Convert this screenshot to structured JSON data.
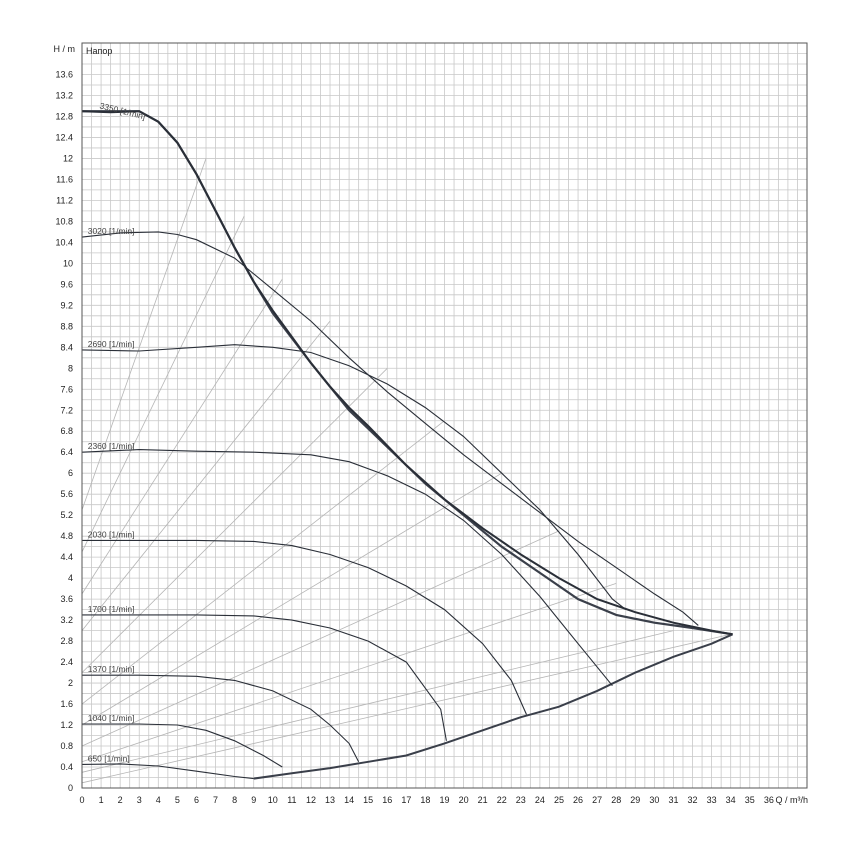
{
  "chart_data": {
    "type": "line",
    "title": "Напор",
    "ylabel": "H / m",
    "xlabel": "Q / m³/h",
    "xlim": [
      0,
      38
    ],
    "ylim": [
      0,
      14.2
    ],
    "x_ticks": [
      0,
      1,
      2,
      3,
      4,
      5,
      6,
      7,
      8,
      9,
      10,
      11,
      12,
      13,
      14,
      15,
      16,
      17,
      18,
      19,
      20,
      21,
      22,
      23,
      24,
      25,
      26,
      27,
      28,
      29,
      30,
      31,
      32,
      33,
      34,
      35,
      36
    ],
    "y_ticks": [
      0,
      0.4,
      0.8,
      1.2,
      1.6,
      2,
      2.4,
      2.8,
      3.2,
      3.6,
      4,
      4.4,
      4.8,
      5.2,
      5.6,
      6,
      6.4,
      6.8,
      7.2,
      7.6,
      8,
      8.4,
      8.8,
      9.2,
      9.6,
      10,
      10.4,
      10.8,
      11.2,
      11.6,
      12,
      12.4,
      12.8,
      13.2,
      13.6
    ],
    "grid": true,
    "speed_series": [
      {
        "name": "3350 [1/min]",
        "points": [
          [
            0,
            12.9
          ],
          [
            1.5,
            12.88
          ],
          [
            3,
            12.9
          ],
          [
            4,
            12.7
          ],
          [
            5,
            12.3
          ],
          [
            6,
            11.7
          ],
          [
            7,
            11.0
          ],
          [
            8,
            10.3
          ],
          [
            9,
            9.65
          ],
          [
            10,
            9.1
          ],
          [
            11,
            8.6
          ],
          [
            12,
            8.1
          ],
          [
            13,
            7.65
          ],
          [
            14,
            7.25
          ],
          [
            15,
            6.9
          ],
          [
            17,
            6.15
          ],
          [
            19,
            5.5
          ],
          [
            21,
            4.95
          ],
          [
            23,
            4.45
          ],
          [
            25,
            4.0
          ],
          [
            27,
            3.6
          ],
          [
            29,
            3.35
          ],
          [
            31,
            3.15
          ],
          [
            33,
            3.0
          ],
          [
            34.1,
            2.93
          ]
        ]
      },
      {
        "name": "3020 [1/min]",
        "points": [
          [
            0,
            10.5
          ],
          [
            2,
            10.58
          ],
          [
            4,
            10.6
          ],
          [
            5,
            10.55
          ],
          [
            6,
            10.45
          ],
          [
            8,
            10.1
          ],
          [
            10,
            9.5
          ],
          [
            12,
            8.9
          ],
          [
            14,
            8.2
          ],
          [
            16,
            7.55
          ],
          [
            18,
            6.95
          ],
          [
            20,
            6.35
          ],
          [
            22,
            5.8
          ],
          [
            24,
            5.25
          ],
          [
            26,
            4.7
          ],
          [
            28,
            4.2
          ],
          [
            30,
            3.7
          ],
          [
            31.5,
            3.35
          ],
          [
            32.3,
            3.1
          ]
        ]
      },
      {
        "name": "2690 [1/min]",
        "points": [
          [
            0,
            8.35
          ],
          [
            3,
            8.33
          ],
          [
            6,
            8.4
          ],
          [
            8,
            8.45
          ],
          [
            10,
            8.4
          ],
          [
            12,
            8.3
          ],
          [
            14,
            8.05
          ],
          [
            16,
            7.7
          ],
          [
            18,
            7.25
          ],
          [
            20,
            6.7
          ],
          [
            22,
            6.0
          ],
          [
            24,
            5.3
          ],
          [
            26,
            4.45
          ],
          [
            27.8,
            3.6
          ],
          [
            28.5,
            3.4
          ]
        ]
      },
      {
        "name": "2360 [1/min]",
        "points": [
          [
            0,
            6.4
          ],
          [
            3,
            6.45
          ],
          [
            6,
            6.42
          ],
          [
            9,
            6.4
          ],
          [
            12,
            6.35
          ],
          [
            14,
            6.22
          ],
          [
            16,
            5.95
          ],
          [
            18,
            5.6
          ],
          [
            20,
            5.1
          ],
          [
            22,
            4.45
          ],
          [
            24,
            3.65
          ],
          [
            26,
            2.75
          ],
          [
            27.8,
            1.95
          ]
        ]
      },
      {
        "name": "2030 [1/min]",
        "points": [
          [
            0,
            4.72
          ],
          [
            3,
            4.72
          ],
          [
            6,
            4.72
          ],
          [
            9,
            4.7
          ],
          [
            11,
            4.62
          ],
          [
            13,
            4.45
          ],
          [
            15,
            4.2
          ],
          [
            17,
            3.85
          ],
          [
            19,
            3.4
          ],
          [
            21,
            2.75
          ],
          [
            22.5,
            2.05
          ],
          [
            23.3,
            1.4
          ]
        ]
      },
      {
        "name": "1700 [1/min]",
        "points": [
          [
            0,
            3.3
          ],
          [
            3,
            3.3
          ],
          [
            6,
            3.3
          ],
          [
            9,
            3.28
          ],
          [
            11,
            3.2
          ],
          [
            13,
            3.05
          ],
          [
            15,
            2.8
          ],
          [
            17,
            2.4
          ],
          [
            18.8,
            1.5
          ],
          [
            19.1,
            0.9
          ]
        ]
      },
      {
        "name": "1370 [1/min]",
        "points": [
          [
            0,
            2.15
          ],
          [
            3,
            2.15
          ],
          [
            6,
            2.13
          ],
          [
            8,
            2.05
          ],
          [
            10,
            1.85
          ],
          [
            12,
            1.5
          ],
          [
            13,
            1.2
          ],
          [
            14,
            0.85
          ],
          [
            14.5,
            0.5
          ]
        ]
      },
      {
        "name": "1040 [1/min]",
        "points": [
          [
            0,
            1.22
          ],
          [
            3,
            1.22
          ],
          [
            5,
            1.2
          ],
          [
            6.5,
            1.1
          ],
          [
            8,
            0.9
          ],
          [
            9.5,
            0.62
          ],
          [
            10.5,
            0.4
          ]
        ]
      },
      {
        "name": "650 [1/min]",
        "points": [
          [
            0,
            0.45
          ],
          [
            2,
            0.46
          ],
          [
            4,
            0.42
          ],
          [
            6,
            0.32
          ],
          [
            8,
            0.22
          ],
          [
            9,
            0.18
          ]
        ]
      }
    ],
    "envelope_min": {
      "points": [
        [
          9,
          0.18
        ],
        [
          11,
          0.28
        ],
        [
          13,
          0.38
        ],
        [
          15,
          0.5
        ],
        [
          17,
          0.62
        ],
        [
          19,
          0.85
        ],
        [
          21,
          1.1
        ],
        [
          23,
          1.35
        ],
        [
          25,
          1.55
        ],
        [
          27,
          1.85
        ],
        [
          29,
          2.2
        ],
        [
          31,
          2.5
        ],
        [
          33,
          2.75
        ],
        [
          34.1,
          2.93
        ]
      ]
    },
    "envelope_max": {
      "points": [
        [
          0,
          12.9
        ],
        [
          3,
          12.9
        ],
        [
          4,
          12.7
        ],
        [
          5,
          12.3
        ],
        [
          6,
          11.7
        ],
        [
          7,
          11.0
        ],
        [
          8,
          10.3
        ],
        [
          9,
          9.65
        ],
        [
          10,
          9.05
        ],
        [
          12,
          8.1
        ],
        [
          14,
          7.2
        ],
        [
          16,
          6.5
        ],
        [
          18,
          5.8
        ],
        [
          20,
          5.2
        ],
        [
          22,
          4.6
        ],
        [
          24,
          4.1
        ],
        [
          26,
          3.6
        ],
        [
          28,
          3.3
        ],
        [
          30,
          3.15
        ],
        [
          32,
          3.05
        ],
        [
          34.1,
          2.93
        ]
      ]
    },
    "efficiency_lines": [
      {
        "points": [
          [
            0,
            5.3
          ],
          [
            6.5,
            12.0
          ]
        ]
      },
      {
        "points": [
          [
            0,
            4.5
          ],
          [
            8.5,
            10.9
          ]
        ]
      },
      {
        "points": [
          [
            0,
            3.7
          ],
          [
            10.5,
            9.7
          ]
        ]
      },
      {
        "points": [
          [
            0,
            3.0
          ],
          [
            13,
            8.9
          ]
        ]
      },
      {
        "points": [
          [
            0,
            2.2
          ],
          [
            16,
            8.0
          ]
        ]
      },
      {
        "points": [
          [
            0,
            1.6
          ],
          [
            19,
            7.0
          ]
        ]
      },
      {
        "points": [
          [
            0,
            1.2
          ],
          [
            22,
            6.0
          ]
        ]
      },
      {
        "points": [
          [
            0,
            0.8
          ],
          [
            25,
            4.9
          ]
        ]
      },
      {
        "points": [
          [
            0,
            0.5
          ],
          [
            28,
            3.9
          ]
        ]
      },
      {
        "points": [
          [
            0,
            0.3
          ],
          [
            31,
            3.0
          ]
        ]
      },
      {
        "points": [
          [
            0,
            0.1
          ],
          [
            34,
            2.93
          ]
        ]
      }
    ]
  }
}
